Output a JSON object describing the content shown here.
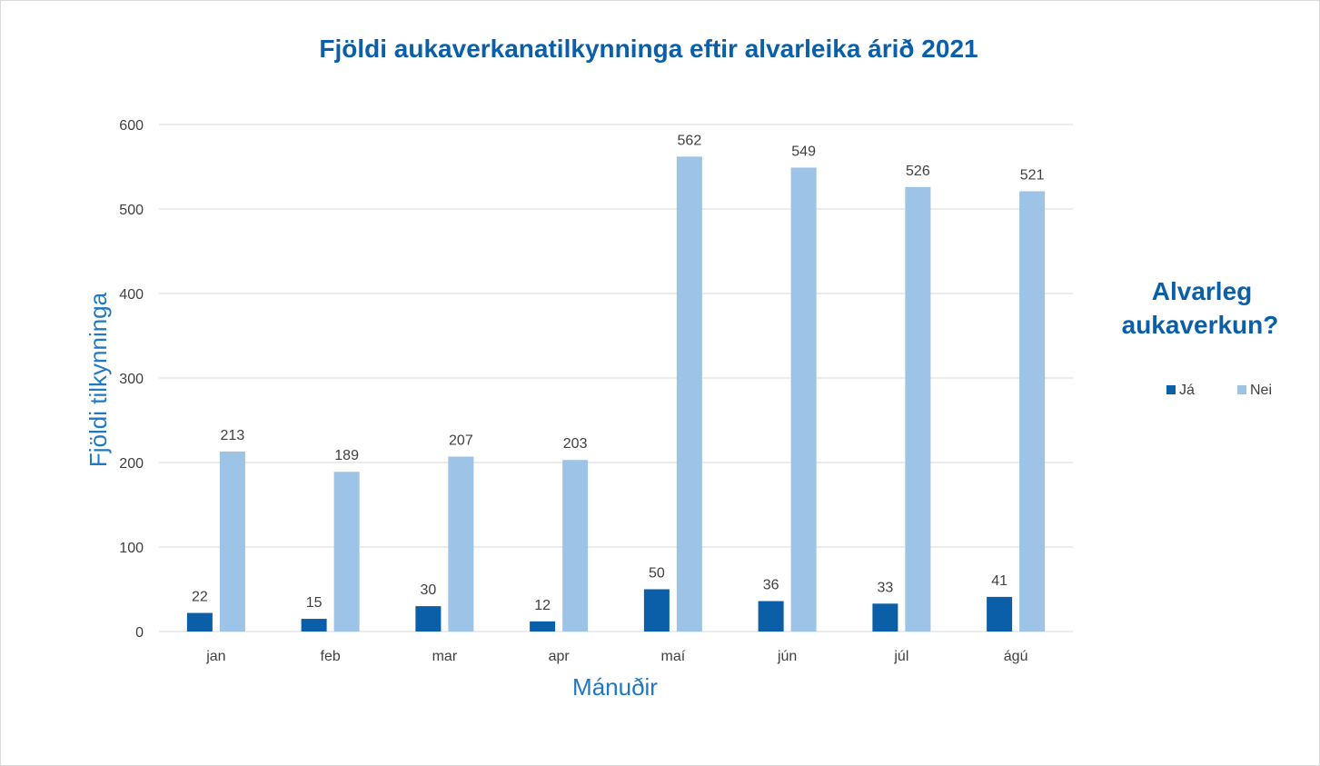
{
  "chart_data": {
    "type": "bar",
    "title": "Fjöldi aukaverkanatilkynninga eftir alvarleika árið 2021",
    "xlabel": "Mánuðir",
    "ylabel": "Fjöldi tilkynninga",
    "ylim": [
      0,
      600
    ],
    "yticks": [
      "0",
      "100",
      "200",
      "300",
      "400",
      "500",
      "600"
    ],
    "grid": true,
    "legend_title_line1": "Alvarleg",
    "legend_title_line2": "aukaverkun?",
    "legend_position": "right",
    "categories": [
      "jan",
      "feb",
      "mar",
      "apr",
      "maí",
      "jún",
      "júl",
      "ágú"
    ],
    "series": [
      {
        "name": "Já",
        "color": "#0a5fa8",
        "values": [
          22,
          15,
          30,
          12,
          50,
          36,
          33,
          41
        ]
      },
      {
        "name": "Nei",
        "color": "#9dc3e6",
        "values": [
          213,
          189,
          207,
          203,
          562,
          549,
          526,
          521
        ]
      }
    ]
  }
}
